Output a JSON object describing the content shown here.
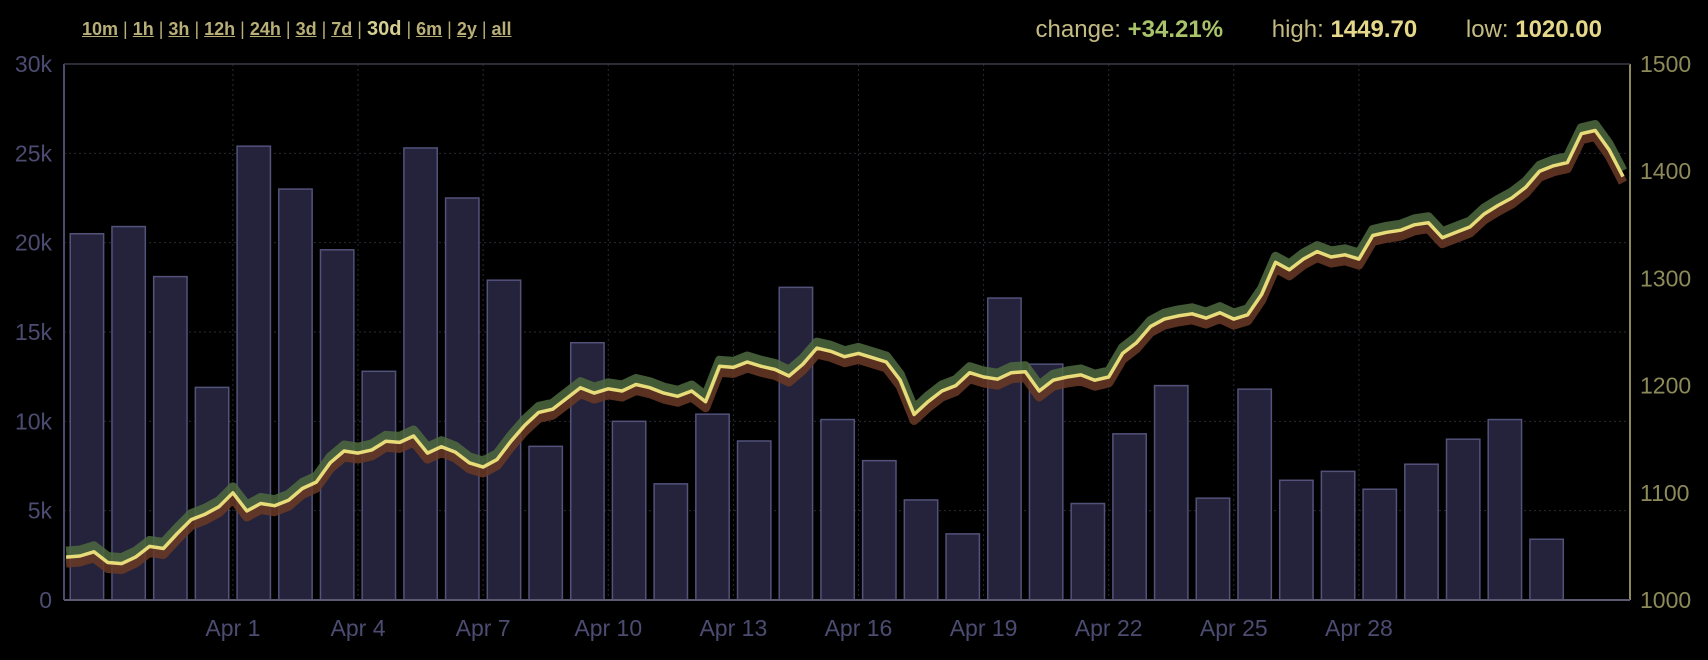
{
  "ranges": [
    "10m",
    "1h",
    "3h",
    "12h",
    "24h",
    "3d",
    "7d",
    "30d",
    "6m",
    "2y",
    "all"
  ],
  "active_range": "30d",
  "stats": {
    "change_label": "change:",
    "change_value": "+34.21%",
    "high_label": "high:",
    "high_value": "1449.70",
    "low_label": "low:",
    "low_value": "1020.00"
  },
  "colors": {
    "background": "#000000",
    "volume_bar": "#24233b",
    "volume_bar_edge": "#52527a",
    "price_line": "#e8dc7a",
    "band_up": "#4e6a3f",
    "band_down": "#6a3a26",
    "axis_left": "#4a4a6e",
    "axis_right": "#8d8a5a"
  },
  "chart_data": {
    "type": "bar+line",
    "x_ticks": [
      "Apr 1",
      "Apr 4",
      "Apr 7",
      "Apr 10",
      "Apr 13",
      "Apr 16",
      "Apr 19",
      "Apr 22",
      "Apr 25",
      "Apr 28"
    ],
    "xlim": [
      "Mar 30",
      "Apr 28 ~12:00"
    ],
    "volume": {
      "axis": "left",
      "ylim": [
        0,
        30000
      ],
      "ticks": [
        "0",
        "5k",
        "10k",
        "15k",
        "20k",
        "25k",
        "30k"
      ],
      "bars": [
        {
          "date": "Mar 30",
          "value": 20500
        },
        {
          "date": "Mar 31",
          "value": 20900
        },
        {
          "date": "Apr 1",
          "value": 18100
        },
        {
          "date": "Apr 2",
          "value": 11900
        },
        {
          "date": "Apr 3",
          "value": 25400
        },
        {
          "date": "Apr 4",
          "value": 23000
        },
        {
          "date": "Apr 5",
          "value": 19600
        },
        {
          "date": "Apr 6",
          "value": 12800
        },
        {
          "date": "Apr 7",
          "value": 25300
        },
        {
          "date": "Apr 8",
          "value": 22500
        },
        {
          "date": "Apr 9",
          "value": 17900
        },
        {
          "date": "Apr 10",
          "value": 8600
        },
        {
          "date": "Apr 11",
          "value": 14400
        },
        {
          "date": "Apr 12",
          "value": 10000
        },
        {
          "date": "Apr 13",
          "value": 6500
        },
        {
          "date": "Apr 14",
          "value": 10400
        },
        {
          "date": "Apr 15",
          "value": 8900
        },
        {
          "date": "Apr 16",
          "value": 17500
        },
        {
          "date": "Apr 17",
          "value": 10100
        },
        {
          "date": "Apr 18",
          "value": 7800
        },
        {
          "date": "Apr 19",
          "value": 5600
        },
        {
          "date": "Apr 20",
          "value": 3700
        },
        {
          "date": "Apr 21",
          "value": 16900
        },
        {
          "date": "Apr 22",
          "value": 13200
        },
        {
          "date": "Apr 23",
          "value": 5400
        },
        {
          "date": "Apr 24",
          "value": 9300
        },
        {
          "date": "Apr 25",
          "value": 12000
        },
        {
          "date": "Apr 26",
          "value": 5700
        },
        {
          "date": "Apr 27",
          "value": 11800
        },
        {
          "date": "Apr 28",
          "value": 6700
        },
        {
          "date": "Apr 29",
          "value": 7200
        },
        {
          "date": "Apr 30",
          "value": 6200
        },
        {
          "date": "May 1",
          "value": 7600
        },
        {
          "date": "May 2",
          "value": 9000
        },
        {
          "date": "May 3",
          "value": 10100
        },
        {
          "date": "May 4",
          "value": 3400
        }
      ]
    },
    "price": {
      "axis": "right",
      "ylim": [
        1000,
        1500
      ],
      "ticks": [
        "1000",
        "1100",
        "1200",
        "1300",
        "1400",
        "1500"
      ],
      "points": [
        [
          "Mar 30 00:00",
          1040
        ],
        [
          "Mar 30 08:00",
          1041
        ],
        [
          "Mar 30 16:00",
          1045
        ],
        [
          "Mar 31 00:00",
          1035
        ],
        [
          "Mar 31 08:00",
          1034
        ],
        [
          "Mar 31 16:00",
          1040
        ],
        [
          "Apr 1 00:00",
          1050
        ],
        [
          "Apr 1 08:00",
          1048
        ],
        [
          "Apr 1 16:00",
          1062
        ],
        [
          "Apr 2 00:00",
          1075
        ],
        [
          "Apr 2 08:00",
          1080
        ],
        [
          "Apr 2 16:00",
          1087
        ],
        [
          "Apr 3 00:00",
          1100
        ],
        [
          "Apr 3 08:00",
          1083
        ],
        [
          "Apr 3 16:00",
          1090
        ],
        [
          "Apr 4 00:00",
          1088
        ],
        [
          "Apr 4 08:00",
          1093
        ],
        [
          "Apr 4 16:00",
          1104
        ],
        [
          "Apr 5 00:00",
          1110
        ],
        [
          "Apr 5 08:00",
          1128
        ],
        [
          "Apr 5 16:00",
          1139
        ],
        [
          "Apr 6 00:00",
          1137
        ],
        [
          "Apr 6 08:00",
          1140
        ],
        [
          "Apr 6 16:00",
          1148
        ],
        [
          "Apr 7 00:00",
          1147
        ],
        [
          "Apr 7 08:00",
          1153
        ],
        [
          "Apr 7 16:00",
          1137
        ],
        [
          "Apr 8 00:00",
          1143
        ],
        [
          "Apr 8 08:00",
          1138
        ],
        [
          "Apr 8 16:00",
          1128
        ],
        [
          "Apr 9 00:00",
          1124
        ],
        [
          "Apr 9 08:00",
          1131
        ],
        [
          "Apr 9 16:00",
          1148
        ],
        [
          "Apr 10 00:00",
          1163
        ],
        [
          "Apr 10 08:00",
          1175
        ],
        [
          "Apr 10 16:00",
          1178
        ],
        [
          "Apr 11 00:00",
          1188
        ],
        [
          "Apr 11 08:00",
          1198
        ],
        [
          "Apr 11 16:00",
          1193
        ],
        [
          "Apr 12 00:00",
          1197
        ],
        [
          "Apr 12 08:00",
          1195
        ],
        [
          "Apr 12 16:00",
          1201
        ],
        [
          "Apr 13 00:00",
          1198
        ],
        [
          "Apr 13 08:00",
          1193
        ],
        [
          "Apr 13 16:00",
          1190
        ],
        [
          "Apr 14 00:00",
          1195
        ],
        [
          "Apr 14 08:00",
          1185
        ],
        [
          "Apr 14 16:00",
          1218
        ],
        [
          "Apr 15 00:00",
          1217
        ],
        [
          "Apr 15 08:00",
          1222
        ],
        [
          "Apr 15 16:00",
          1218
        ],
        [
          "Apr 16 00:00",
          1215
        ],
        [
          "Apr 16 08:00",
          1209
        ],
        [
          "Apr 16 16:00",
          1220
        ],
        [
          "Apr 17 00:00",
          1235
        ],
        [
          "Apr 17 08:00",
          1232
        ],
        [
          "Apr 17 16:00",
          1227
        ],
        [
          "Apr 18 00:00",
          1230
        ],
        [
          "Apr 18 08:00",
          1226
        ],
        [
          "Apr 18 16:00",
          1222
        ],
        [
          "Apr 19 00:00",
          1205
        ],
        [
          "Apr 19 08:00",
          1173
        ],
        [
          "Apr 19 16:00",
          1185
        ],
        [
          "Apr 20 00:00",
          1195
        ],
        [
          "Apr 20 08:00",
          1200
        ],
        [
          "Apr 20 16:00",
          1212
        ],
        [
          "Apr 21 00:00",
          1208
        ],
        [
          "Apr 21 08:00",
          1206
        ],
        [
          "Apr 21 16:00",
          1212
        ],
        [
          "Apr 22 00:00",
          1213
        ],
        [
          "Apr 22 08:00",
          1195
        ],
        [
          "Apr 22 16:00",
          1205
        ],
        [
          "Apr 23 00:00",
          1208
        ],
        [
          "Apr 23 08:00",
          1210
        ],
        [
          "Apr 23 16:00",
          1205
        ],
        [
          "Apr 24 00:00",
          1208
        ],
        [
          "Apr 24 08:00",
          1230
        ],
        [
          "Apr 24 16:00",
          1240
        ],
        [
          "Apr 25 00:00",
          1255
        ],
        [
          "Apr 25 08:00",
          1262
        ],
        [
          "Apr 25 16:00",
          1265
        ],
        [
          "Apr 26 00:00",
          1267
        ],
        [
          "Apr 26 08:00",
          1263
        ],
        [
          "Apr 26 16:00",
          1268
        ],
        [
          "Apr 27 00:00",
          1262
        ],
        [
          "Apr 27 08:00",
          1266
        ],
        [
          "Apr 27 16:00",
          1285
        ],
        [
          "Apr 28 00:00",
          1315
        ],
        [
          "Apr 28 08:00",
          1308
        ],
        [
          "Apr 28 16:00",
          1318
        ],
        [
          "Apr 29 00:00",
          1325
        ],
        [
          "Apr 29 08:00",
          1320
        ],
        [
          "Apr 29 16:00",
          1322
        ],
        [
          "Apr 30 00:00",
          1318
        ],
        [
          "Apr 30 08:00",
          1340
        ],
        [
          "Apr 30 16:00",
          1343
        ],
        [
          "May 1 00:00",
          1345
        ],
        [
          "May 1 08:00",
          1350
        ],
        [
          "May 1 16:00",
          1352
        ],
        [
          "May 2 00:00",
          1338
        ],
        [
          "May 2 08:00",
          1343
        ],
        [
          "May 2 16:00",
          1348
        ],
        [
          "May 3 00:00",
          1360
        ],
        [
          "May 3 08:00",
          1368
        ],
        [
          "May 3 16:00",
          1375
        ],
        [
          "May 4 00:00",
          1385
        ],
        [
          "May 4 08:00",
          1400
        ],
        [
          "May 4 16:00",
          1405
        ],
        [
          "May 5 00:00",
          1408
        ],
        [
          "May 5 08:00",
          1435
        ],
        [
          "May 5 16:00",
          1438
        ],
        [
          "May 6 00:00",
          1420
        ],
        [
          "May 6 08:00",
          1395
        ]
      ]
    },
    "grid": true
  }
}
